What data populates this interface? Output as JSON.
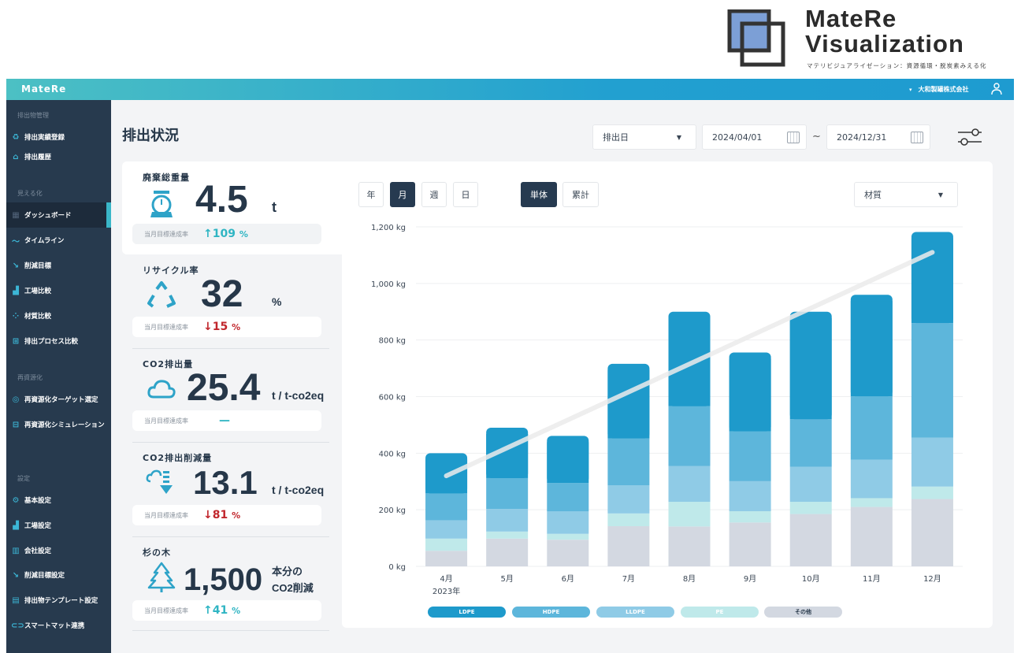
{
  "brand": {
    "logo_line1": "MateRe",
    "logo_line2": "Visualization",
    "tagline": "マテリビジュアライゼーション：資源循環・脱炭素みえる化"
  },
  "header": {
    "app_name": "MateRe",
    "company": "大和製罐株式会社",
    "company_caret": "▾",
    "user_icon": "user-icon"
  },
  "sidebar": {
    "sections": [
      {
        "label": "排出物管理",
        "items": [
          {
            "label": "排出実績登録",
            "icon": "recycle-icon"
          },
          {
            "label": "排出履歴",
            "icon": "warehouse-icon"
          }
        ]
      },
      {
        "label": "見える化",
        "items": [
          {
            "label": "ダッシュボード",
            "icon": "dashboard-icon",
            "active": true
          },
          {
            "label": "タイムライン",
            "icon": "trend-icon"
          },
          {
            "label": "削減目標",
            "icon": "trend-down-icon"
          },
          {
            "label": "工場比較",
            "icon": "factory-icon"
          },
          {
            "label": "材質比較",
            "icon": "materials-icon"
          },
          {
            "label": "排出プロセス比較",
            "icon": "process-icon"
          }
        ]
      },
      {
        "label": "再資源化",
        "items": [
          {
            "label": "再資源化ターゲット選定",
            "icon": "target-icon"
          },
          {
            "label": "再資源化シミュレーション",
            "icon": "simulation-icon"
          }
        ]
      },
      {
        "label": "設定",
        "items": [
          {
            "label": "基本設定",
            "icon": "gear-icon"
          },
          {
            "label": "工場設定",
            "icon": "factory-icon"
          },
          {
            "label": "会社設定",
            "icon": "building-icon"
          },
          {
            "label": "削減目標設定",
            "icon": "trend-down-icon"
          },
          {
            "label": "排出物テンプレート設定",
            "icon": "document-icon"
          },
          {
            "label": "スマートマット連携",
            "icon": "link-icon"
          }
        ]
      }
    ]
  },
  "page": {
    "title": "排出状況"
  },
  "filters": {
    "date_type": "排出日",
    "date_from": "2024/04/01",
    "tilde": "~",
    "date_to": "2024/12/31"
  },
  "kpis": [
    {
      "title": "廃棄総重量",
      "value": "4.5",
      "unit": "t",
      "goal_label": "当月目標達成率",
      "goal_arrow": "↑",
      "goal_value": "109",
      "goal_unit": "%",
      "trend": "up"
    },
    {
      "title": "リサイクル率",
      "value": "32",
      "unit": "%",
      "goal_label": "当月目標達成率",
      "goal_arrow": "↓",
      "goal_value": "15",
      "goal_unit": "%",
      "trend": "down"
    },
    {
      "title": "CO2排出量",
      "value": "25.4",
      "unit": "t / t-co2eq",
      "goal_label": "当月目標達成率",
      "goal_arrow": "",
      "goal_value": "—",
      "goal_unit": "",
      "trend": "up"
    },
    {
      "title": "CO2排出削減量",
      "value": "13.1",
      "unit": "t / t-co2eq",
      "goal_label": "当月目標達成率",
      "goal_arrow": "↓",
      "goal_value": "81",
      "goal_unit": "%",
      "trend": "down"
    },
    {
      "title": "杉の木",
      "value": "1,500",
      "unit_line1": "本分の",
      "unit_line2": "CO2削減",
      "goal_label": "当月目標達成率",
      "goal_arrow": "↑",
      "goal_value": "41",
      "goal_unit": "%",
      "trend": "up"
    }
  ],
  "chart_controls": {
    "period": [
      "年",
      "月",
      "週",
      "日"
    ],
    "period_selected": "月",
    "mode": [
      "単体",
      "累計"
    ],
    "mode_selected": "単体",
    "group_by": "材質"
  },
  "colors": {
    "LDPE": "#1e9acb",
    "HDPE": "#5db6db",
    "LLDPE": "#8fcbe6",
    "PE": "#bfe9ea",
    "その他": "#d3d8e1",
    "trend": "#ececec",
    "up": "#2fb5c3",
    "down": "#c1272d"
  },
  "chart_data": {
    "type": "bar",
    "stacked": true,
    "categories": [
      "4月",
      "5月",
      "6月",
      "7月",
      "8月",
      "9月",
      "10月",
      "11月",
      "12月"
    ],
    "year_label": "2023年",
    "ylim": [
      0,
      1200
    ],
    "yticks": [
      "0 kg",
      "200 kg",
      "400 kg",
      "600 kg",
      "800 kg",
      "1,000 kg",
      "1,200 kg"
    ],
    "grid": true,
    "legend_position": "bottom",
    "series": [
      {
        "name": "その他",
        "values": [
          55,
          98,
          94,
          142,
          141,
          155,
          185,
          210,
          238
        ]
      },
      {
        "name": "PE",
        "values": [
          43,
          25,
          21,
          45,
          87,
          40,
          43,
          31,
          44
        ]
      },
      {
        "name": "LLDPE",
        "values": [
          65,
          80,
          79,
          99,
          127,
          106,
          124,
          136,
          173
        ]
      },
      {
        "name": "HDPE",
        "values": [
          95,
          109,
          101,
          166,
          211,
          176,
          168,
          224,
          405
        ]
      },
      {
        "name": "LDPE",
        "values": [
          142,
          178,
          166,
          264,
          334,
          279,
          380,
          359,
          322
        ]
      }
    ],
    "legend": [
      "LDPE",
      "HDPE",
      "LLDPE",
      "PE",
      "その他"
    ],
    "trend_line": {
      "start": 320,
      "end": 1110
    }
  }
}
